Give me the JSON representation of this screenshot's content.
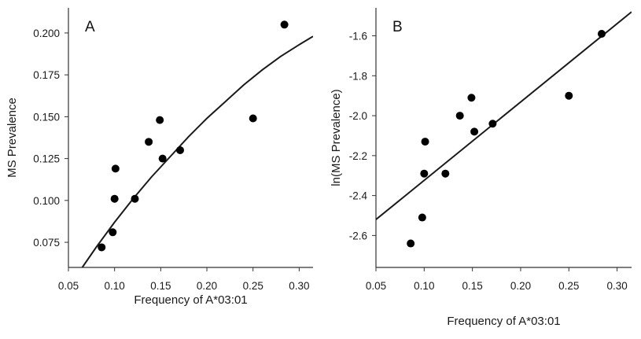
{
  "chart_data": [
    {
      "type": "scatter",
      "panel_label": "A",
      "title": "",
      "xlabel": "Frequency of A*03:01",
      "ylabel": "MS Prevalence",
      "xlim": [
        0.05,
        0.315
      ],
      "ylim": [
        0.06,
        0.215
      ],
      "x_ticks": [
        0.05,
        0.1,
        0.15,
        0.2,
        0.25,
        0.3
      ],
      "x_tick_labels": [
        "0.05",
        "0.10",
        "0.15",
        "0.20",
        "0.25",
        "0.30"
      ],
      "y_ticks": [
        0.075,
        0.1,
        0.125,
        0.15,
        0.175,
        0.2
      ],
      "y_tick_labels": [
        "0.075",
        "0.100",
        "0.125",
        "0.150",
        "0.175",
        "0.200"
      ],
      "grid": false,
      "points": {
        "x": [
          0.086,
          0.098,
          0.1,
          0.101,
          0.122,
          0.137,
          0.149,
          0.152,
          0.171,
          0.25,
          0.284
        ],
        "y": [
          0.072,
          0.081,
          0.101,
          0.119,
          0.101,
          0.135,
          0.148,
          0.125,
          0.13,
          0.149,
          0.205
        ]
      },
      "fit": {
        "type": "curve",
        "x": [
          0.065,
          0.08,
          0.1,
          0.12,
          0.14,
          0.16,
          0.18,
          0.2,
          0.22,
          0.24,
          0.26,
          0.28,
          0.3,
          0.315
        ],
        "y": [
          0.06,
          0.072,
          0.087,
          0.101,
          0.114,
          0.126,
          0.138,
          0.149,
          0.159,
          0.169,
          0.178,
          0.186,
          0.193,
          0.198
        ]
      }
    },
    {
      "type": "scatter",
      "panel_label": "B",
      "title": "",
      "xlabel": "Frequency of A*03:01",
      "ylabel": "ln(MS Prevalence)",
      "xlim": [
        0.05,
        0.315
      ],
      "ylim": [
        -2.76,
        -1.46
      ],
      "x_ticks": [
        0.05,
        0.1,
        0.15,
        0.2,
        0.25,
        0.3
      ],
      "x_tick_labels": [
        "0.05",
        "0.10",
        "0.15",
        "0.20",
        "0.25",
        "0.30"
      ],
      "y_ticks": [
        -2.6,
        -2.4,
        -2.2,
        -2.0,
        -1.8,
        -1.6
      ],
      "y_tick_labels": [
        "-2.6",
        "-2.4",
        "-2.2",
        "-2.0",
        "-1.8",
        "-1.6"
      ],
      "grid": false,
      "points": {
        "x": [
          0.086,
          0.098,
          0.1,
          0.101,
          0.122,
          0.137,
          0.149,
          0.152,
          0.171,
          0.25,
          0.284
        ],
        "y": [
          -2.64,
          -2.51,
          -2.29,
          -2.13,
          -2.29,
          -2.0,
          -1.91,
          -2.08,
          -2.04,
          -1.9,
          -1.59
        ]
      },
      "fit": {
        "type": "line",
        "x": [
          0.05,
          0.315
        ],
        "y": [
          -2.52,
          -1.48
        ]
      }
    }
  ]
}
